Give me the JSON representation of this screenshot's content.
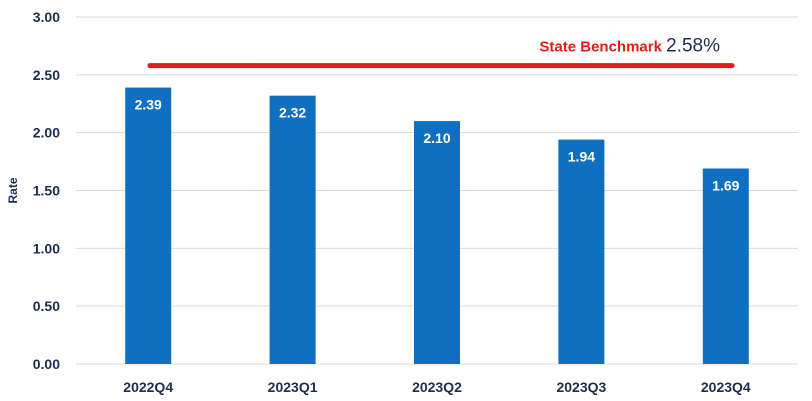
{
  "chart_data": {
    "type": "bar",
    "categories": [
      "2022Q4",
      "2023Q1",
      "2023Q2",
      "2023Q3",
      "2023Q4"
    ],
    "values": [
      2.39,
      2.32,
      2.1,
      1.94,
      1.69
    ],
    "value_labels": [
      "2.39",
      "2.32",
      "2.10",
      "1.94",
      "1.69"
    ],
    "xlabel": "",
    "ylabel": "Rate",
    "ylim": [
      0,
      3
    ],
    "yticks": [
      0,
      0.5,
      1,
      1.5,
      2,
      2.5,
      3
    ],
    "ytick_labels": [
      "0.00",
      "0.50",
      "1.00",
      "1.50",
      "2.00",
      "2.50",
      "3.00"
    ],
    "grid": true,
    "benchmark": {
      "label": "State Benchmark",
      "value_text": "2.58%",
      "value": 2.58
    }
  },
  "colors": {
    "bar": "#0f6fc0",
    "grid": "#d9d9d9",
    "benchmark_line": "#e21b1b",
    "benchmark_label": "#e21b1b",
    "benchmark_value": "#1f2d4d",
    "text": "#1f2d4d"
  }
}
